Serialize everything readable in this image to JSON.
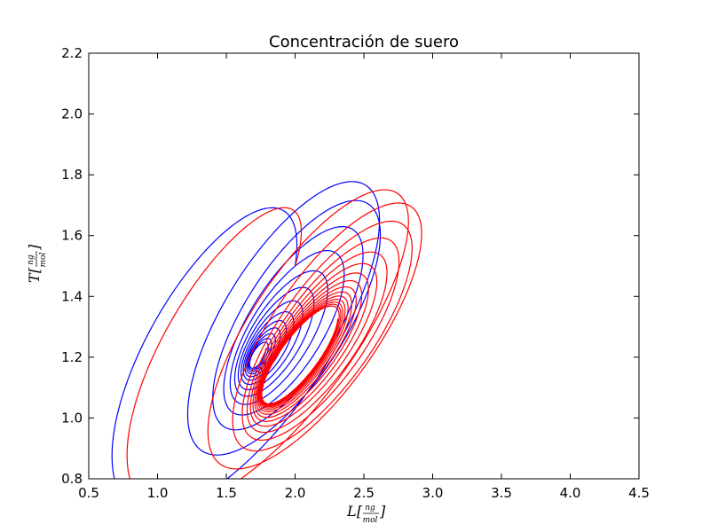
{
  "chart_data": {
    "type": "line",
    "title": "Concentración de suero",
    "xlabel": {
      "main": "L",
      "numerator": "ng",
      "denominator": "mol"
    },
    "ylabel": {
      "main": "T",
      "numerator": "ng",
      "denominator": "mol"
    },
    "xlim": [
      0.5,
      4.5
    ],
    "ylim": [
      0.8,
      2.2
    ],
    "xticks": [
      "0.5",
      "1.0",
      "1.5",
      "2.0",
      "2.5",
      "3.0",
      "3.5",
      "4.0",
      "4.5"
    ],
    "yticks": [
      "0.8",
      "1.0",
      "1.2",
      "1.4",
      "1.6",
      "1.8",
      "2.0",
      "2.2"
    ],
    "grid": false,
    "series": [
      {
        "color": "#0000ff",
        "start": [
          2.0,
          1.5
        ],
        "spiral": {
          "center": [
            1.7,
            1.19
          ],
          "rx0": 1.75,
          "ry0": 0.62,
          "rxEnd": 0.01,
          "ryEnd": 0.01,
          "turns": 14,
          "tilt": 28,
          "phase0": -8,
          "decay": 0.34,
          "shiftX": 0.55,
          "shiftY": 0.24
        }
      },
      {
        "color": "#ff0000",
        "start": [
          2.0,
          1.5
        ],
        "spiral": {
          "center": [
            2.02,
            1.2
          ],
          "rx0": 1.72,
          "ry0": 0.56,
          "rxEnd": 0.45,
          "ryEnd": 0.12,
          "turns": 16,
          "tilt": 27,
          "phase0": -12,
          "decay": 0.3,
          "shiftX": 0.42,
          "shiftY": 0.16
        }
      }
    ]
  }
}
